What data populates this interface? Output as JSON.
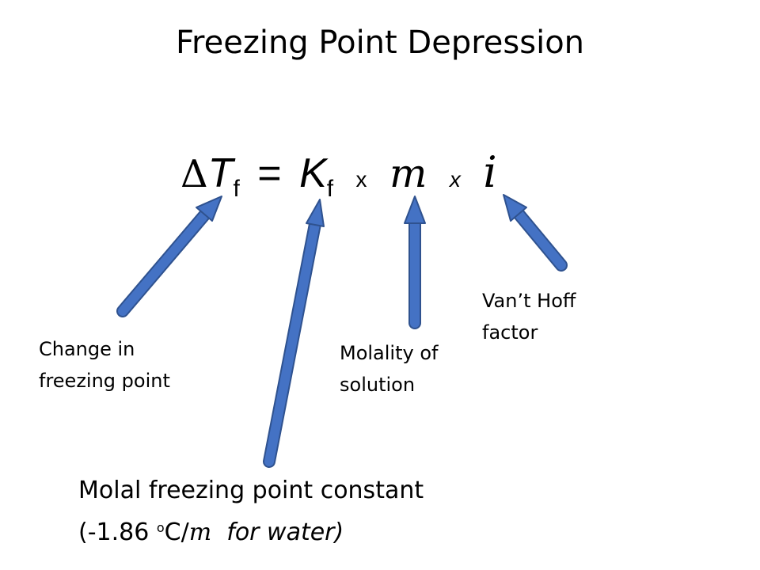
{
  "slide": {
    "title": "Freezing Point Depression",
    "equation": {
      "delta": "Δ",
      "t_var": "T",
      "t_sub": "f",
      "equals": "=",
      "k_var": "K",
      "k_sub": "f",
      "times_1": "x",
      "m_var": "m",
      "times_2": "x",
      "i_var": "i"
    },
    "labels": {
      "change_line1": "Change in",
      "change_line2": "freezing point",
      "molality_line1": "Molality of",
      "molality_line2": "solution",
      "vant_hoff_line1": "Van’t Hoff",
      "vant_hoff_line2": "factor",
      "constant_line1": "Molal freezing point constant",
      "constant_line2_prefix": "(-1.86 ",
      "constant_line2_sup": "o",
      "constant_line2_unit": "C/",
      "constant_line2_m": "m",
      "constant_line2_suffix": "  for water)"
    },
    "colors": {
      "arrow_fill": "#4472C4",
      "arrow_stroke": "#2F528F"
    }
  }
}
